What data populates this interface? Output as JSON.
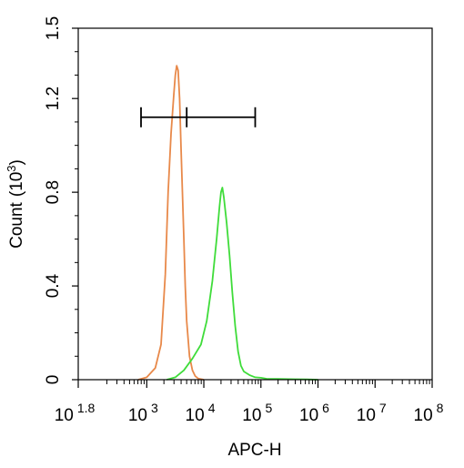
{
  "chart_data": {
    "type": "line",
    "title": "",
    "xlabel": "APC-H",
    "ylabel": "Count",
    "ylabel_unit_base": "(10",
    "ylabel_unit_exp": "3",
    "ylabel_unit_close": ")",
    "x_scale": "log",
    "xlim": [
      63.1,
      100000000
    ],
    "ylim": [
      0,
      1.5
    ],
    "x_ticks": [
      {
        "value": 63.1,
        "base": "10",
        "exp": "1.8"
      },
      {
        "value": 1000,
        "base": "10",
        "exp": "3"
      },
      {
        "value": 10000,
        "base": "10",
        "exp": "4"
      },
      {
        "value": 100000,
        "base": "10",
        "exp": "5"
      },
      {
        "value": 1000000,
        "base": "10",
        "exp": "6"
      },
      {
        "value": 10000000,
        "base": "10",
        "exp": "7"
      },
      {
        "value": 100000000,
        "base": "10",
        "exp": "8"
      }
    ],
    "y_ticks": [
      {
        "value": 0,
        "label": "0"
      },
      {
        "value": 0.4,
        "label": "0.4"
      },
      {
        "value": 0.8,
        "label": "0.8"
      },
      {
        "value": 1.2,
        "label": "1.2"
      },
      {
        "value": 1.5,
        "label": "1.5"
      }
    ],
    "grid": false,
    "gate": {
      "x_start": 794,
      "x_mid": 5012,
      "x_end": 79433,
      "y": 1.12
    },
    "series": [
      {
        "color": "#e8894a",
        "x": [
          710,
          1000,
          1413,
          1778,
          2113,
          2371,
          2661,
          2985,
          3162,
          3350,
          3548,
          3758,
          3981,
          4217,
          4467,
          4732,
          5012,
          5623,
          6310,
          7080,
          7943,
          10000
        ],
        "y": [
          0.0,
          0.01,
          0.05,
          0.15,
          0.45,
          0.8,
          1.05,
          1.22,
          1.3,
          1.34,
          1.32,
          1.2,
          1.0,
          0.8,
          0.6,
          0.4,
          0.25,
          0.1,
          0.04,
          0.015,
          0.005,
          0.0
        ]
      },
      {
        "color": "#3fdc3a",
        "x": [
          2239,
          3162,
          4467,
          6310,
          8913,
          11220,
          14125,
          16788,
          18836,
          20000,
          21135,
          22387,
          25119,
          28184,
          31623,
          35481,
          39811,
          44668,
          50119,
          63096,
          79433,
          100000,
          125893,
          199526,
          398107,
          630957,
          1000000
        ],
        "y": [
          0.0,
          0.01,
          0.04,
          0.09,
          0.15,
          0.25,
          0.42,
          0.6,
          0.74,
          0.8,
          0.82,
          0.78,
          0.67,
          0.53,
          0.37,
          0.23,
          0.12,
          0.06,
          0.035,
          0.02,
          0.01,
          0.008,
          0.004,
          0.003,
          0.002,
          0.001,
          0.0
        ]
      }
    ]
  }
}
